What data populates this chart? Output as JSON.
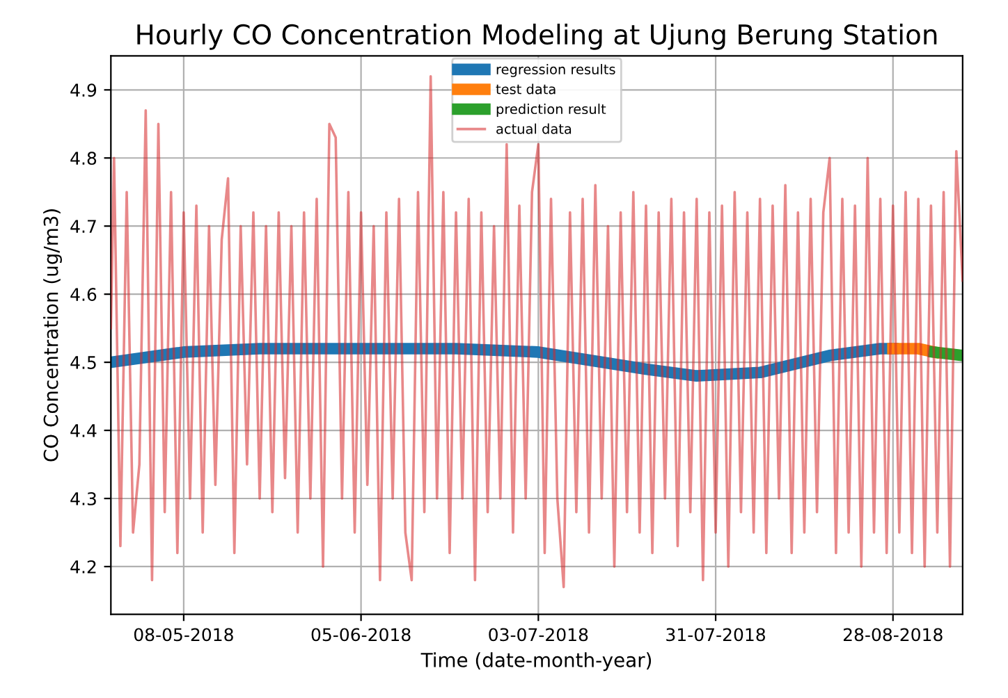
{
  "chart_data": {
    "type": "line",
    "title": "Hourly CO Concentration Modeling at Ujung Berung Station",
    "xlabel": "Time (date-month-year)",
    "ylabel": "CO Concentration (ug/m3)",
    "xlim": [
      "2018-04-26T12:00",
      "2018-09-08"
    ],
    "ylim": [
      4.13,
      4.95
    ],
    "xticks": [
      {
        "value": "2018-05-08",
        "label": "08-05-2018"
      },
      {
        "value": "2018-06-05",
        "label": "05-06-2018"
      },
      {
        "value": "2018-07-03",
        "label": "03-07-2018"
      },
      {
        "value": "2018-07-31",
        "label": "31-07-2018"
      },
      {
        "value": "2018-08-28",
        "label": "28-08-2018"
      }
    ],
    "yticks": [
      4.2,
      4.3,
      4.4,
      4.5,
      4.6,
      4.7,
      4.8,
      4.9
    ],
    "grid": true,
    "legend": "top",
    "series": [
      {
        "name": "regression results",
        "color": "#1f77b4",
        "x": [
          "2018-04-26T12:00",
          "2018-05-08",
          "2018-05-20",
          "2018-06-20",
          "2018-07-03",
          "2018-07-20",
          "2018-07-28",
          "2018-08-07",
          "2018-08-18",
          "2018-08-26",
          "2018-08-28"
        ],
        "values": [
          4.5,
          4.515,
          4.52,
          4.52,
          4.515,
          4.49,
          4.48,
          4.485,
          4.51,
          4.52,
          4.52
        ]
      },
      {
        "name": "test data",
        "color": "#ff7f0e",
        "x": [
          "2018-08-28",
          "2018-09-01",
          "2018-09-03T12:00"
        ],
        "values": [
          4.52,
          4.52,
          4.515
        ]
      },
      {
        "name": "prediction result",
        "color": "#2ca02c",
        "x": [
          "2018-09-03T12:00",
          "2018-09-08"
        ],
        "values": [
          4.515,
          4.51
        ]
      },
      {
        "name": "actual data",
        "color": "#d62728",
        "x": [
          "2018-04-26T12:00",
          "2018-04-27",
          "2018-04-28",
          "2018-04-29",
          "2018-04-30",
          "2018-05-01",
          "2018-05-02",
          "2018-05-03",
          "2018-05-04",
          "2018-05-05",
          "2018-05-06",
          "2018-05-07",
          "2018-05-08",
          "2018-05-09",
          "2018-05-10",
          "2018-05-11",
          "2018-05-12",
          "2018-05-13",
          "2018-05-14",
          "2018-05-15",
          "2018-05-16",
          "2018-05-17",
          "2018-05-18",
          "2018-05-19",
          "2018-05-20",
          "2018-05-21",
          "2018-05-22",
          "2018-05-23",
          "2018-05-24",
          "2018-05-25",
          "2018-05-26",
          "2018-05-27",
          "2018-05-28",
          "2018-05-29",
          "2018-05-30",
          "2018-05-31",
          "2018-06-01",
          "2018-06-02",
          "2018-06-03",
          "2018-06-04",
          "2018-06-05",
          "2018-06-06",
          "2018-06-07",
          "2018-06-08",
          "2018-06-09",
          "2018-06-10",
          "2018-06-11",
          "2018-06-12",
          "2018-06-13",
          "2018-06-14",
          "2018-06-15",
          "2018-06-16",
          "2018-06-17",
          "2018-06-18",
          "2018-06-19",
          "2018-06-20",
          "2018-06-21",
          "2018-06-22",
          "2018-06-23",
          "2018-06-24",
          "2018-06-25",
          "2018-06-26",
          "2018-06-27",
          "2018-06-28",
          "2018-06-29",
          "2018-06-30",
          "2018-07-01",
          "2018-07-02",
          "2018-07-03",
          "2018-07-04",
          "2018-07-05",
          "2018-07-06",
          "2018-07-07",
          "2018-07-08",
          "2018-07-09",
          "2018-07-10",
          "2018-07-11",
          "2018-07-12",
          "2018-07-13",
          "2018-07-14",
          "2018-07-15",
          "2018-07-16",
          "2018-07-17",
          "2018-07-18",
          "2018-07-19",
          "2018-07-20",
          "2018-07-21",
          "2018-07-22",
          "2018-07-23",
          "2018-07-24",
          "2018-07-25",
          "2018-07-26",
          "2018-07-27",
          "2018-07-28",
          "2018-07-29",
          "2018-07-30",
          "2018-07-31",
          "2018-08-01",
          "2018-08-02",
          "2018-08-03",
          "2018-08-04",
          "2018-08-05",
          "2018-08-06",
          "2018-08-07",
          "2018-08-08",
          "2018-08-09",
          "2018-08-10",
          "2018-08-11",
          "2018-08-12",
          "2018-08-13",
          "2018-08-14",
          "2018-08-15",
          "2018-08-16",
          "2018-08-17",
          "2018-08-18",
          "2018-08-19",
          "2018-08-20",
          "2018-08-21",
          "2018-08-22",
          "2018-08-23",
          "2018-08-24",
          "2018-08-25",
          "2018-08-26",
          "2018-08-27",
          "2018-08-28",
          "2018-08-29",
          "2018-08-30",
          "2018-08-31",
          "2018-09-01",
          "2018-09-02",
          "2018-09-03",
          "2018-09-04",
          "2018-09-05",
          "2018-09-06",
          "2018-09-07",
          "2018-09-08"
        ],
        "values": [
          4.55,
          4.8,
          4.23,
          4.75,
          4.25,
          4.35,
          4.87,
          4.18,
          4.85,
          4.28,
          4.75,
          4.22,
          4.72,
          4.3,
          4.73,
          4.25,
          4.7,
          4.32,
          4.68,
          4.77,
          4.22,
          4.7,
          4.35,
          4.72,
          4.3,
          4.7,
          4.28,
          4.72,
          4.33,
          4.7,
          4.25,
          4.72,
          4.3,
          4.74,
          4.2,
          4.85,
          4.83,
          4.3,
          4.75,
          4.25,
          4.72,
          4.32,
          4.7,
          4.18,
          4.72,
          4.3,
          4.74,
          4.25,
          4.18,
          4.75,
          4.28,
          4.92,
          4.3,
          4.75,
          4.22,
          4.72,
          4.3,
          4.74,
          4.18,
          4.72,
          4.28,
          4.7,
          4.3,
          4.82,
          4.25,
          4.73,
          4.3,
          4.75,
          4.82,
          4.22,
          4.74,
          4.3,
          4.17,
          4.72,
          4.28,
          4.74,
          4.25,
          4.76,
          4.3,
          4.7,
          4.2,
          4.72,
          4.28,
          4.75,
          4.25,
          4.73,
          4.22,
          4.72,
          4.3,
          4.74,
          4.23,
          4.72,
          4.28,
          4.74,
          4.18,
          4.72,
          4.25,
          4.73,
          4.2,
          4.75,
          4.28,
          4.72,
          4.25,
          4.74,
          4.22,
          4.73,
          4.3,
          4.76,
          4.22,
          4.72,
          4.25,
          4.74,
          4.28,
          4.72,
          4.8,
          4.22,
          4.74,
          4.25,
          4.73,
          4.2,
          4.8,
          4.25,
          4.74,
          4.22,
          4.73,
          4.25,
          4.75,
          4.22,
          4.74,
          4.2,
          4.73,
          4.25,
          4.75,
          4.2,
          4.81,
          4.62
        ]
      }
    ]
  }
}
